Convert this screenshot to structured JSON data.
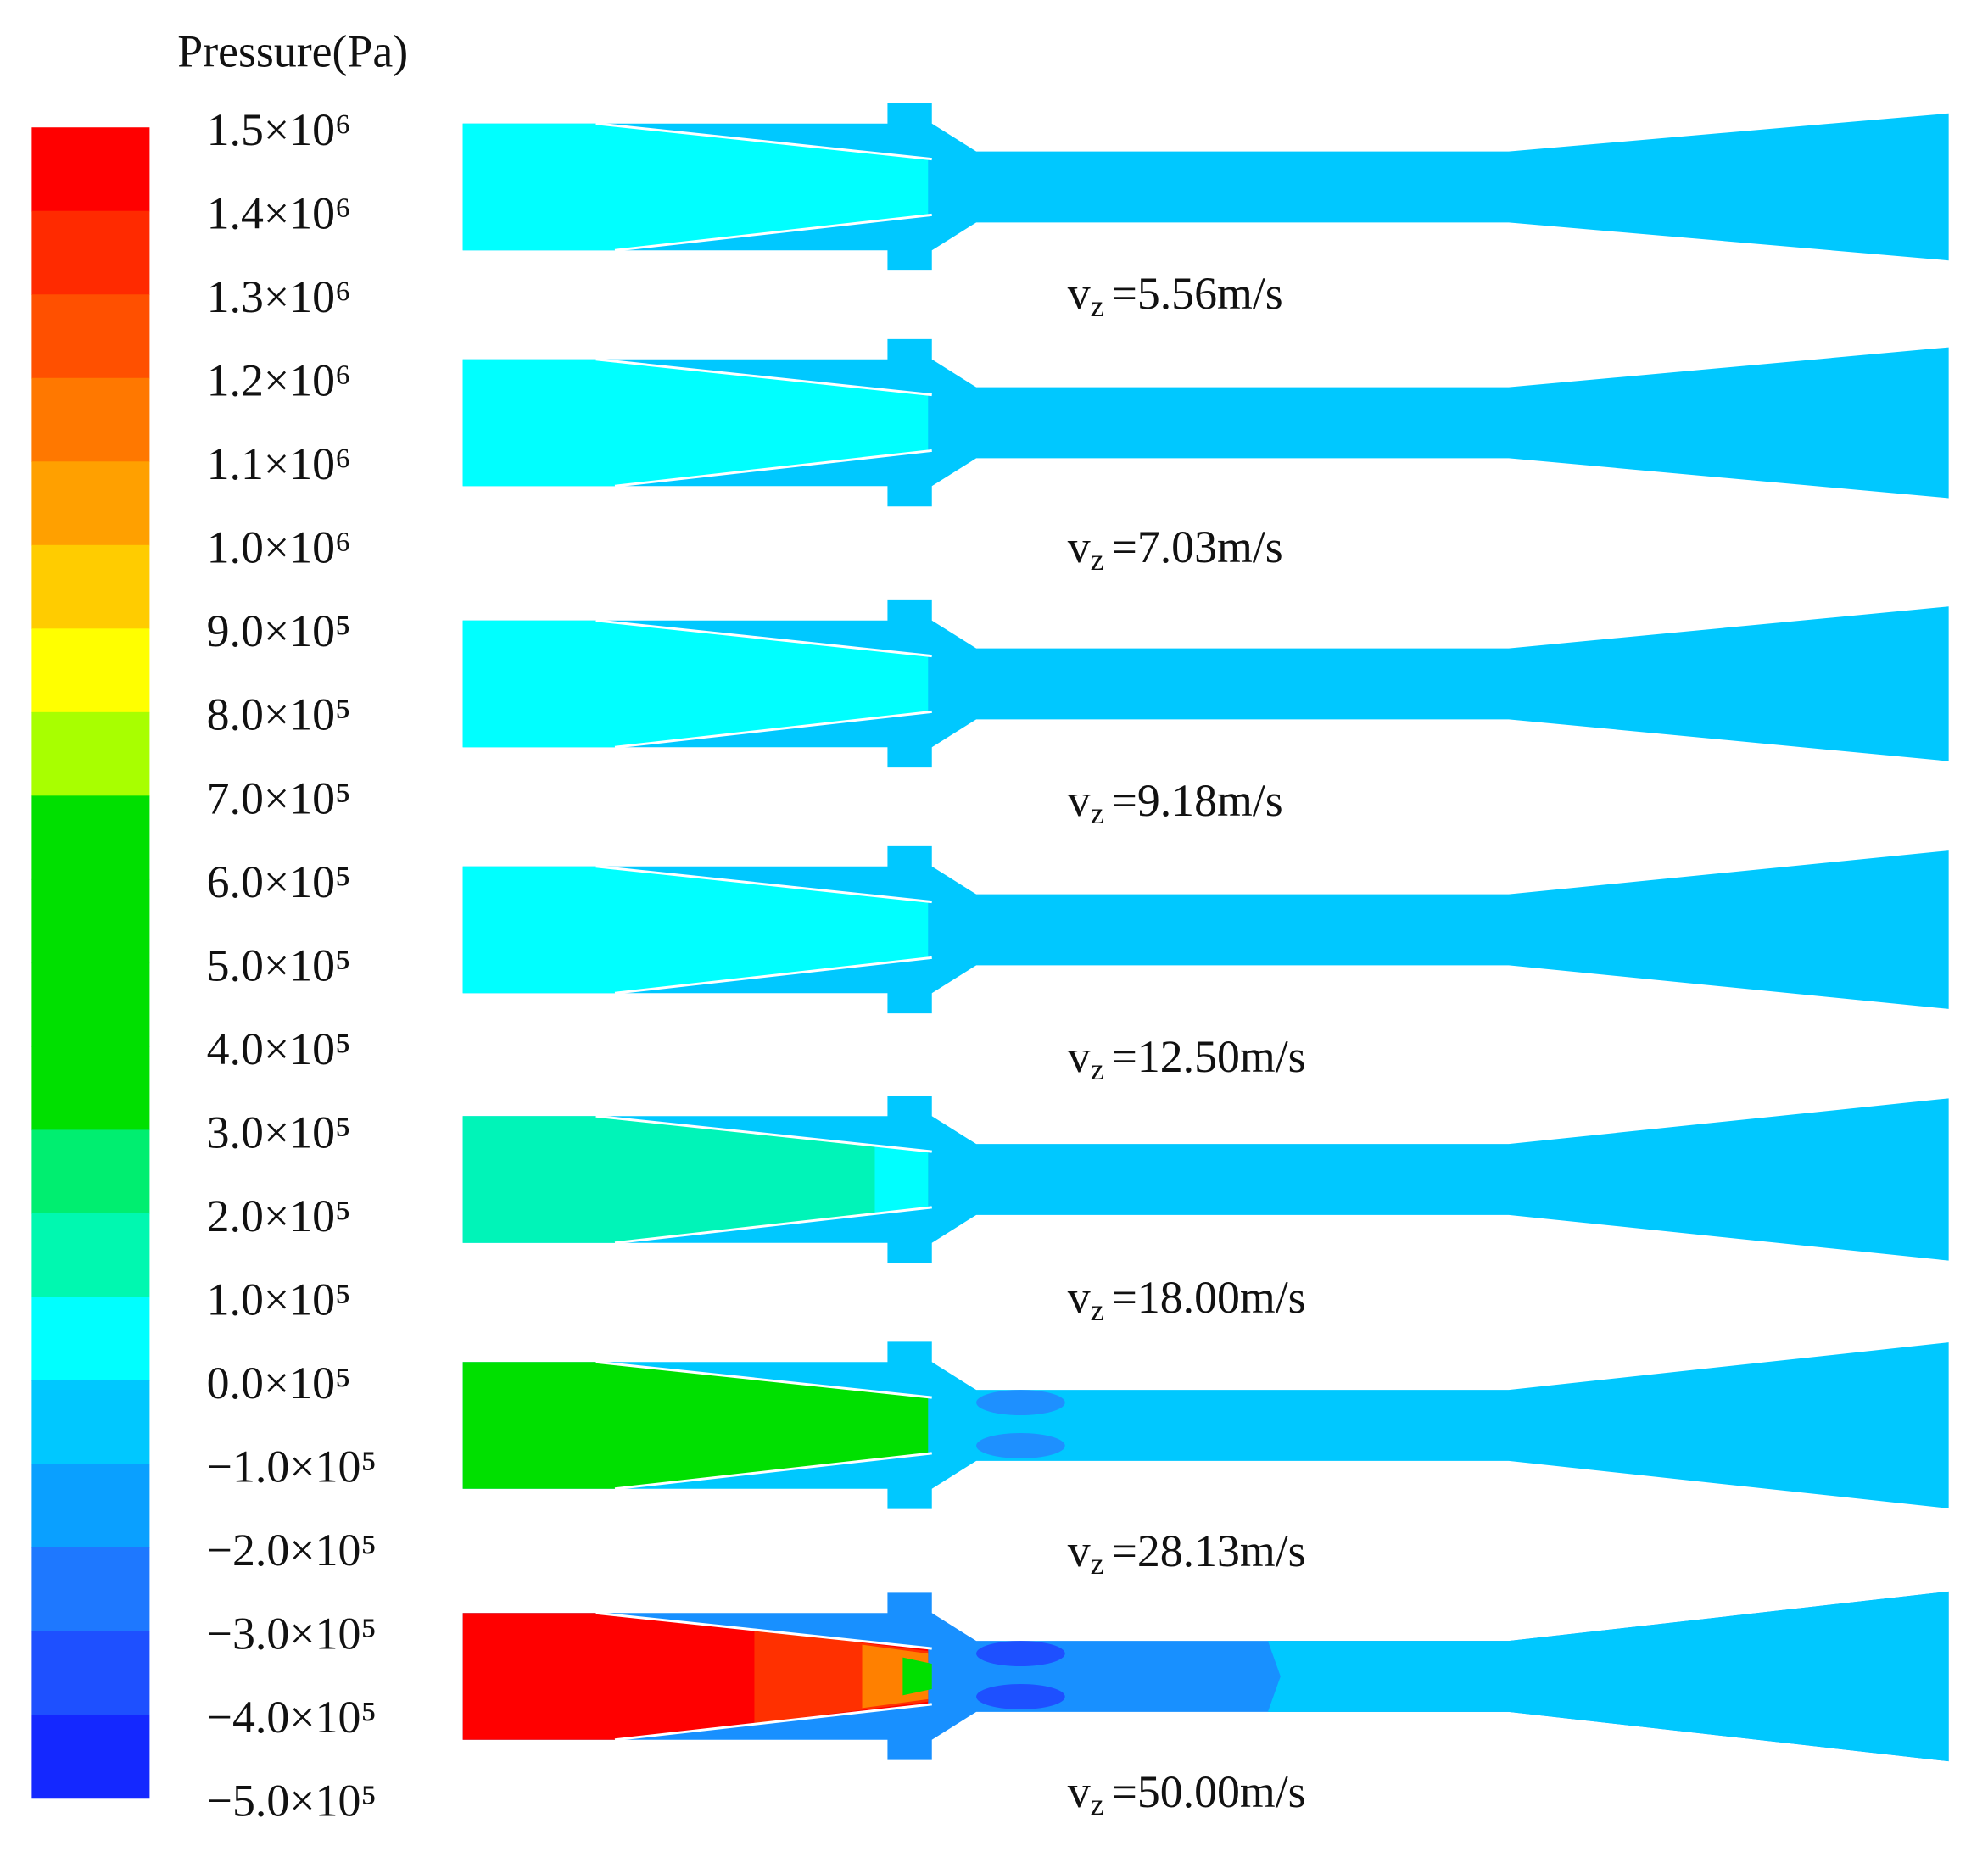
{
  "colorbar": {
    "title": "Pressure(Pa)",
    "labels": [
      "1.5×10⁶",
      "1.4×10⁶",
      "1.3×10⁶",
      "1.2×10⁶",
      "1.1×10⁶",
      "1.0×10⁶",
      "9.0×10⁵",
      "8.0×10⁵",
      "7.0×10⁵",
      "6.0×10⁵",
      "5.0×10⁵",
      "4.0×10⁵",
      "3.0×10⁵",
      "2.0×10⁵",
      "1.0×10⁵",
      "0.0×10⁵",
      "−1.0×10⁵",
      "−2.0×10⁵",
      "−3.0×10⁵",
      "−4.0×10⁵",
      "−5.0×10⁵"
    ],
    "colors": [
      "#ff0000",
      "#ff2a00",
      "#ff5000",
      "#ff7800",
      "#ffa000",
      "#ffcc00",
      "#ffff00",
      "#a8ff00",
      "#00e000",
      "#00e000",
      "#00e000",
      "#00e000",
      "#00ee70",
      "#00f8b0",
      "#00ffff",
      "#00c8ff",
      "#0aa0ff",
      "#1e78ff",
      "#1e50ff",
      "#1428ff"
    ]
  },
  "cases": {
    "symbol": "v",
    "subscript": "z",
    "labels": [
      "=5.56m/s",
      "=7.03m/s",
      "=9.18m/s",
      "=12.50m/s",
      "=18.00m/s",
      "=28.13m/s",
      "=50.00m/s"
    ]
  }
}
